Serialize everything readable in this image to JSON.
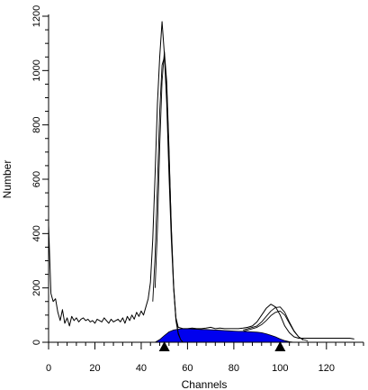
{
  "chart_data": {
    "type": "area",
    "title": "",
    "xlabel": "Channels",
    "ylabel": "Number",
    "xlim": [
      0,
      136
    ],
    "ylim": [
      0,
      1200
    ],
    "x_ticks": [
      0,
      20,
      40,
      60,
      80,
      100,
      120
    ],
    "y_ticks": [
      0,
      200,
      400,
      600,
      800,
      1000,
      1200
    ],
    "x_minor_step": 4,
    "y_minor_step": 50,
    "grid": false,
    "legend": "none",
    "colors": {
      "fill": "#0000ee",
      "line": "#000000"
    },
    "markers": [
      {
        "x": 50,
        "shape": "triangle-up-icon"
      },
      {
        "x": 100,
        "shape": "triangle-up-icon"
      }
    ],
    "series": [
      {
        "role": "histogram",
        "x": [
          0,
          1,
          2,
          3,
          4,
          5,
          6,
          7,
          8,
          9,
          10,
          11,
          12,
          13,
          14,
          15,
          16,
          17,
          18,
          19,
          20,
          21,
          22,
          23,
          24,
          25,
          26,
          27,
          28,
          29,
          30,
          31,
          32,
          33,
          34,
          35,
          36,
          37,
          38,
          39,
          40,
          41,
          42,
          43,
          44,
          45,
          46,
          47,
          48,
          49,
          50,
          51,
          52,
          53,
          54,
          55,
          56,
          58,
          60,
          62,
          64,
          66,
          68,
          70,
          72,
          74,
          76,
          78,
          80,
          82,
          84,
          86,
          88,
          90,
          92,
          94,
          96,
          98,
          100,
          102,
          104,
          106,
          108,
          110,
          112,
          114,
          116,
          118,
          120,
          122,
          124,
          126,
          128,
          130,
          132
        ],
        "values": [
          430,
          180,
          150,
          160,
          110,
          80,
          120,
          70,
          90,
          60,
          95,
          80,
          90,
          75,
          85,
          90,
          80,
          85,
          75,
          80,
          70,
          85,
          80,
          75,
          90,
          80,
          70,
          85,
          75,
          80,
          85,
          75,
          90,
          70,
          95,
          80,
          100,
          85,
          110,
          95,
          115,
          100,
          130,
          160,
          220,
          380,
          620,
          880,
          1050,
          1180,
          1060,
          880,
          620,
          380,
          200,
          90,
          55,
          50,
          50,
          52,
          50,
          50,
          52,
          55,
          50,
          52,
          50,
          50,
          50,
          50,
          52,
          55,
          60,
          75,
          100,
          125,
          140,
          130,
          100,
          60,
          35,
          20,
          15,
          15,
          15,
          15,
          15,
          15,
          15,
          15,
          15,
          15,
          15,
          15,
          12
        ]
      },
      {
        "role": "fit",
        "x": [
          46,
          47,
          48,
          49,
          50,
          51,
          52,
          53,
          54,
          55,
          56,
          57,
          58
        ],
        "values": [
          200,
          420,
          720,
          960,
          1070,
          960,
          720,
          420,
          200,
          80,
          30,
          10,
          0
        ]
      },
      {
        "role": "fit",
        "x": [
          45,
          46,
          47,
          48,
          49,
          50,
          51,
          52,
          53,
          54,
          55,
          56,
          57,
          58
        ],
        "values": [
          150,
          320,
          580,
          850,
          1020,
          1050,
          940,
          700,
          430,
          210,
          90,
          35,
          10,
          0
        ]
      },
      {
        "role": "fit",
        "x": [
          84,
          86,
          88,
          90,
          92,
          94,
          96,
          98,
          100,
          102,
          104,
          106,
          108,
          110,
          112
        ],
        "values": [
          40,
          45,
          50,
          55,
          65,
          80,
          98,
          110,
          115,
          100,
          70,
          40,
          20,
          10,
          5
        ]
      },
      {
        "role": "fit",
        "x": [
          84,
          86,
          88,
          90,
          92,
          94,
          96,
          98,
          100,
          102,
          104,
          106,
          108,
          110
        ],
        "values": [
          45,
          50,
          55,
          60,
          75,
          95,
          115,
          128,
          130,
          110,
          75,
          42,
          20,
          8
        ]
      },
      {
        "role": "s-phase",
        "x": [
          46,
          48,
          50,
          52,
          54,
          56,
          58,
          60,
          62,
          64,
          66,
          68,
          70,
          72,
          74,
          76,
          78,
          80,
          82,
          84,
          86,
          88,
          90,
          92,
          94,
          96,
          98,
          100,
          102,
          104,
          106
        ],
        "values": [
          0,
          10,
          25,
          38,
          45,
          48,
          50,
          50,
          49,
          48,
          47,
          47,
          46,
          45,
          44,
          43,
          42,
          41,
          40,
          40,
          39,
          38,
          37,
          35,
          31,
          26,
          20,
          12,
          6,
          2,
          0
        ]
      }
    ]
  }
}
